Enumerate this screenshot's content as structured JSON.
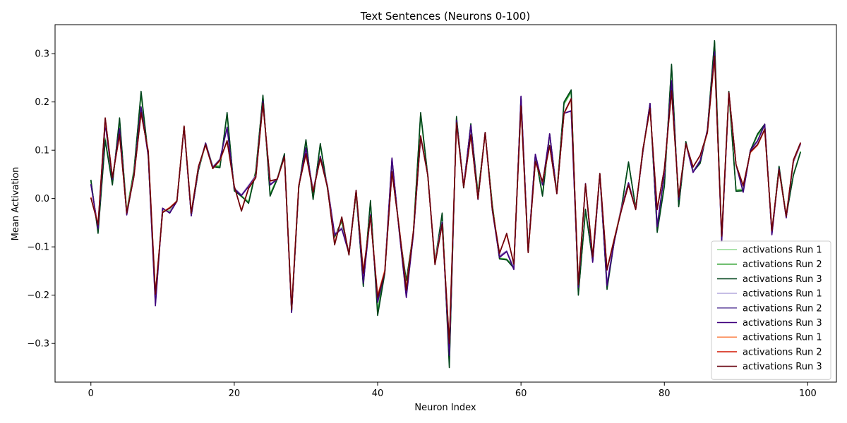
{
  "chart_data": {
    "type": "line",
    "title": "Text Sentences (Neurons 0-100)",
    "xlabel": "Neuron Index",
    "ylabel": "Mean Activation",
    "xlim": [
      -5,
      104
    ],
    "ylim": [
      -0.38,
      0.36
    ],
    "xticks": [
      0,
      20,
      40,
      60,
      80,
      100
    ],
    "yticks": [
      -0.3,
      -0.2,
      -0.1,
      0.0,
      0.1,
      0.2,
      0.3
    ],
    "xtick_labels": [
      "0",
      "20",
      "40",
      "60",
      "80",
      "100"
    ],
    "ytick_labels": [
      "−0.3",
      "−0.2",
      "−0.1",
      "0.0",
      "0.1",
      "0.2",
      "0.3"
    ],
    "grid": false,
    "legend_position": "lower right",
    "series": [
      {
        "name": "activations Run 1",
        "color": "#90d890",
        "values": [
          0.035,
          -0.065,
          0.125,
          0.032,
          0.16,
          -0.025,
          0.06,
          0.215,
          0.085,
          -0.205,
          -0.025,
          -0.025,
          -0.003,
          0.148,
          -0.032,
          0.058,
          0.112,
          0.068,
          0.068,
          0.172,
          0.018,
          0.006,
          -0.006,
          0.058,
          0.21,
          0.01,
          0.042,
          0.09,
          -0.23,
          0.025,
          0.118,
          0.002,
          0.11,
          0.02,
          -0.078,
          -0.048,
          -0.112,
          0.01,
          -0.175,
          -0.01,
          -0.23,
          -0.15,
          0.078,
          -0.062,
          -0.185,
          -0.065,
          0.172,
          0.045,
          -0.128,
          -0.035,
          -0.335,
          0.165,
          0.025,
          0.15,
          0.012,
          0.132,
          -0.012,
          -0.123,
          -0.125,
          -0.14,
          0.205,
          -0.108,
          0.088,
          0.01,
          0.13,
          0.015,
          0.195,
          0.22,
          -0.195,
          -0.028,
          -0.125,
          0.048,
          -0.18,
          -0.085,
          -0.018,
          0.072,
          -0.018,
          0.095,
          0.193,
          -0.065,
          0.03,
          0.272,
          -0.015,
          0.115,
          0.058,
          0.075,
          0.14,
          0.322,
          -0.08,
          0.215,
          0.018,
          0.02,
          0.098,
          0.13,
          0.15,
          -0.07,
          0.065,
          -0.035,
          0.05,
          0.098
        ]
      },
      {
        "name": "activations Run 2",
        "color": "#2ca02c",
        "values": [
          0.037,
          -0.068,
          0.122,
          0.03,
          0.163,
          -0.028,
          0.058,
          0.218,
          0.088,
          -0.208,
          -0.022,
          -0.028,
          -0.004,
          0.149,
          -0.034,
          0.058,
          0.113,
          0.067,
          0.066,
          0.175,
          0.017,
          0.004,
          -0.008,
          0.057,
          0.212,
          0.008,
          0.042,
          0.091,
          -0.232,
          0.024,
          0.12,
          0.0,
          0.112,
          0.021,
          -0.079,
          -0.047,
          -0.114,
          0.011,
          -0.178,
          -0.007,
          -0.235,
          -0.152,
          0.079,
          -0.063,
          -0.188,
          -0.066,
          0.175,
          0.046,
          -0.13,
          -0.033,
          -0.342,
          0.167,
          0.024,
          0.152,
          0.01,
          0.134,
          -0.013,
          -0.124,
          -0.126,
          -0.142,
          0.207,
          -0.109,
          0.089,
          0.007,
          0.132,
          0.013,
          0.197,
          0.222,
          -0.198,
          -0.025,
          -0.127,
          0.05,
          -0.184,
          -0.087,
          -0.019,
          0.074,
          -0.019,
          0.096,
          0.195,
          -0.067,
          0.028,
          0.275,
          -0.016,
          0.116,
          0.057,
          0.074,
          0.141,
          0.325,
          -0.082,
          0.218,
          0.016,
          0.018,
          0.099,
          0.132,
          0.152,
          -0.071,
          0.066,
          -0.036,
          0.049,
          0.097
        ]
      },
      {
        "name": "activations Run 3",
        "color": "#00441b",
        "values": [
          0.039,
          -0.072,
          0.12,
          0.028,
          0.167,
          -0.03,
          0.055,
          0.222,
          0.09,
          -0.21,
          -0.02,
          -0.03,
          -0.005,
          0.15,
          -0.035,
          0.058,
          0.115,
          0.066,
          0.064,
          0.178,
          0.016,
          0.005,
          -0.01,
          0.055,
          0.214,
          0.005,
          0.04,
          0.093,
          -0.235,
          0.022,
          0.122,
          -0.002,
          0.114,
          0.022,
          -0.08,
          -0.045,
          -0.116,
          0.012,
          -0.182,
          -0.004,
          -0.242,
          -0.155,
          0.08,
          -0.065,
          -0.17,
          -0.068,
          0.178,
          0.048,
          -0.132,
          -0.03,
          -0.35,
          0.17,
          0.022,
          0.155,
          0.008,
          0.136,
          -0.014,
          -0.125,
          -0.127,
          -0.144,
          0.21,
          -0.11,
          0.09,
          0.005,
          0.134,
          0.012,
          0.2,
          0.225,
          -0.2,
          -0.022,
          -0.13,
          0.052,
          -0.188,
          -0.09,
          -0.02,
          0.076,
          -0.02,
          0.098,
          0.197,
          -0.07,
          0.025,
          0.278,
          -0.017,
          0.118,
          0.055,
          0.073,
          0.142,
          0.327,
          -0.085,
          0.222,
          0.015,
          0.016,
          0.1,
          0.134,
          0.154,
          -0.072,
          0.067,
          -0.037,
          0.048,
          0.096
        ]
      },
      {
        "name": "activations Run 1",
        "color": "#bcb2e0",
        "values": [
          0.028,
          -0.058,
          0.16,
          0.042,
          0.14,
          -0.03,
          0.05,
          0.185,
          0.092,
          -0.215,
          -0.022,
          -0.028,
          -0.004,
          0.146,
          -0.034,
          0.062,
          0.113,
          0.066,
          0.082,
          0.145,
          0.022,
          0.008,
          0.028,
          0.048,
          0.198,
          0.03,
          0.042,
          0.085,
          -0.232,
          0.028,
          0.102,
          0.018,
          0.085,
          0.028,
          -0.072,
          -0.06,
          -0.11,
          0.015,
          -0.17,
          -0.032,
          -0.208,
          -0.148,
          0.082,
          -0.065,
          -0.2,
          -0.07,
          0.128,
          0.05,
          -0.13,
          -0.048,
          -0.32,
          0.16,
          0.028,
          0.148,
          0.0,
          0.135,
          -0.022,
          -0.118,
          -0.108,
          -0.143,
          0.21,
          -0.108,
          0.09,
          0.03,
          0.132,
          0.012,
          0.178,
          0.18,
          -0.18,
          0.028,
          -0.128,
          0.048,
          -0.175,
          -0.088,
          -0.018,
          0.032,
          -0.02,
          0.098,
          0.195,
          -0.055,
          0.05,
          0.24,
          0.0,
          0.112,
          0.056,
          0.08,
          0.14,
          0.3,
          -0.085,
          0.215,
          0.07,
          0.015,
          0.098,
          0.118,
          0.152,
          -0.072,
          0.06,
          -0.038,
          0.075,
          0.112
        ]
      },
      {
        "name": "activations Run 2",
        "color": "#6a51a3",
        "values": [
          0.029,
          -0.06,
          0.158,
          0.041,
          0.142,
          -0.032,
          0.049,
          0.188,
          0.09,
          -0.218,
          -0.021,
          -0.029,
          -0.005,
          0.147,
          -0.035,
          0.062,
          0.114,
          0.065,
          0.081,
          0.147,
          0.021,
          0.007,
          0.026,
          0.047,
          0.2,
          0.029,
          0.041,
          0.086,
          -0.234,
          0.027,
          0.104,
          0.016,
          0.087,
          0.027,
          -0.074,
          -0.062,
          -0.112,
          0.016,
          -0.172,
          -0.033,
          -0.212,
          -0.15,
          0.083,
          -0.066,
          -0.202,
          -0.072,
          0.127,
          0.049,
          -0.132,
          -0.049,
          -0.322,
          0.161,
          0.027,
          0.15,
          -0.001,
          0.136,
          -0.024,
          -0.12,
          -0.109,
          -0.145,
          0.211,
          -0.109,
          0.091,
          0.029,
          0.133,
          0.011,
          0.177,
          0.181,
          -0.182,
          0.03,
          -0.13,
          0.049,
          -0.178,
          -0.089,
          -0.019,
          0.032,
          -0.021,
          0.097,
          0.196,
          -0.057,
          0.051,
          0.242,
          -0.001,
          0.113,
          0.055,
          0.079,
          0.141,
          0.302,
          -0.087,
          0.217,
          0.07,
          0.014,
          0.099,
          0.119,
          0.153,
          -0.074,
          0.061,
          -0.039,
          0.076,
          0.113
        ]
      },
      {
        "name": "activations Run 3",
        "color": "#3f007d",
        "values": [
          0.03,
          -0.062,
          0.155,
          0.04,
          0.145,
          -0.034,
          0.048,
          0.19,
          0.088,
          -0.222,
          -0.02,
          -0.03,
          -0.006,
          0.148,
          -0.036,
          0.062,
          0.115,
          0.064,
          0.08,
          0.148,
          0.02,
          0.006,
          0.025,
          0.046,
          0.202,
          0.028,
          0.04,
          0.088,
          -0.236,
          0.026,
          0.105,
          0.015,
          0.088,
          0.026,
          -0.075,
          -0.063,
          -0.114,
          0.017,
          -0.175,
          -0.034,
          -0.215,
          -0.152,
          0.084,
          -0.067,
          -0.205,
          -0.073,
          0.126,
          0.048,
          -0.134,
          -0.05,
          -0.325,
          0.162,
          0.026,
          0.152,
          -0.002,
          0.137,
          -0.025,
          -0.122,
          -0.11,
          -0.147,
          0.212,
          -0.11,
          0.092,
          0.028,
          0.134,
          0.01,
          0.176,
          0.182,
          -0.184,
          0.031,
          -0.132,
          0.05,
          -0.18,
          -0.09,
          -0.02,
          0.033,
          -0.022,
          0.096,
          0.197,
          -0.058,
          0.052,
          0.244,
          -0.002,
          0.114,
          0.054,
          0.078,
          0.142,
          0.304,
          -0.089,
          0.219,
          0.07,
          0.013,
          0.1,
          0.12,
          0.154,
          -0.075,
          0.062,
          -0.04,
          0.077,
          0.114
        ]
      },
      {
        "name": "activations Run 1",
        "color": "#fc8d59",
        "values": [
          0.003,
          -0.052,
          0.165,
          0.045,
          0.13,
          -0.028,
          0.046,
          0.175,
          0.1,
          -0.195,
          -0.028,
          -0.018,
          -0.005,
          0.149,
          -0.028,
          0.065,
          0.11,
          0.062,
          0.078,
          0.118,
          0.025,
          -0.024,
          0.022,
          0.045,
          0.195,
          0.036,
          0.04,
          0.085,
          -0.225,
          0.028,
          0.09,
          0.015,
          0.082,
          0.025,
          -0.092,
          -0.04,
          -0.115,
          0.015,
          -0.15,
          -0.038,
          -0.2,
          -0.148,
          0.054,
          -0.058,
          -0.185,
          -0.065,
          0.128,
          0.048,
          -0.133,
          -0.055,
          -0.295,
          0.155,
          0.025,
          0.13,
          0.001,
          0.135,
          -0.02,
          -0.112,
          -0.075,
          -0.133,
          0.19,
          -0.11,
          0.075,
          0.035,
          0.108,
          0.012,
          0.175,
          0.205,
          -0.175,
          0.028,
          -0.118,
          0.05,
          -0.145,
          -0.083,
          -0.023,
          0.028,
          -0.021,
          0.1,
          0.185,
          -0.02,
          0.06,
          0.22,
          0.005,
          0.112,
          0.066,
          0.088,
          0.135,
          0.292,
          -0.075,
          0.218,
          0.07,
          0.028,
          0.095,
          0.11,
          0.142,
          -0.065,
          0.058,
          -0.035,
          0.078,
          0.115
        ]
      },
      {
        "name": "activations Run 2",
        "color": "#d7301f",
        "values": [
          0.002,
          -0.053,
          0.166,
          0.044,
          0.132,
          -0.029,
          0.046,
          0.177,
          0.098,
          -0.197,
          -0.028,
          -0.019,
          -0.005,
          0.15,
          -0.029,
          0.066,
          0.111,
          0.062,
          0.079,
          0.119,
          0.025,
          -0.025,
          0.022,
          0.044,
          0.196,
          0.036,
          0.04,
          0.086,
          -0.228,
          0.027,
          0.092,
          0.014,
          0.083,
          0.024,
          -0.094,
          -0.039,
          -0.116,
          0.016,
          -0.152,
          -0.037,
          -0.202,
          -0.15,
          0.055,
          -0.059,
          -0.187,
          -0.066,
          0.129,
          0.048,
          -0.135,
          -0.054,
          -0.298,
          0.156,
          0.024,
          0.131,
          0.0,
          0.136,
          -0.021,
          -0.113,
          -0.073,
          -0.135,
          0.191,
          -0.111,
          0.076,
          0.035,
          0.109,
          0.011,
          0.176,
          0.206,
          -0.177,
          0.029,
          -0.12,
          0.051,
          -0.147,
          -0.084,
          -0.024,
          0.028,
          -0.022,
          0.101,
          0.186,
          -0.022,
          0.061,
          0.222,
          0.004,
          0.113,
          0.066,
          0.089,
          0.136,
          0.294,
          -0.077,
          0.219,
          0.07,
          0.027,
          0.096,
          0.111,
          0.143,
          -0.066,
          0.059,
          -0.036,
          0.079,
          0.115
        ]
      },
      {
        "name": "activations Run 3",
        "color": "#67000d",
        "values": [
          0.001,
          -0.054,
          0.167,
          0.043,
          0.133,
          -0.03,
          0.045,
          0.178,
          0.097,
          -0.198,
          -0.029,
          -0.02,
          -0.006,
          0.15,
          -0.03,
          0.066,
          0.112,
          0.062,
          0.08,
          0.12,
          0.026,
          -0.026,
          0.021,
          0.043,
          0.197,
          0.037,
          0.04,
          0.087,
          -0.23,
          0.026,
          0.093,
          0.013,
          0.084,
          0.023,
          -0.096,
          -0.038,
          -0.117,
          0.017,
          -0.155,
          -0.036,
          -0.205,
          -0.153,
          0.056,
          -0.06,
          -0.19,
          -0.067,
          0.13,
          0.048,
          -0.137,
          -0.053,
          -0.3,
          0.157,
          0.023,
          0.132,
          -0.001,
          0.137,
          -0.022,
          -0.114,
          -0.072,
          -0.136,
          0.192,
          -0.112,
          0.077,
          0.036,
          0.11,
          0.01,
          0.177,
          0.207,
          -0.178,
          0.03,
          -0.121,
          0.052,
          -0.148,
          -0.085,
          -0.025,
          0.028,
          -0.023,
          0.102,
          0.187,
          -0.023,
          0.062,
          0.223,
          0.003,
          0.114,
          0.065,
          0.09,
          0.137,
          0.295,
          -0.078,
          0.22,
          0.07,
          0.026,
          0.097,
          0.112,
          0.144,
          -0.067,
          0.06,
          -0.037,
          0.08,
          0.116
        ]
      }
    ]
  }
}
